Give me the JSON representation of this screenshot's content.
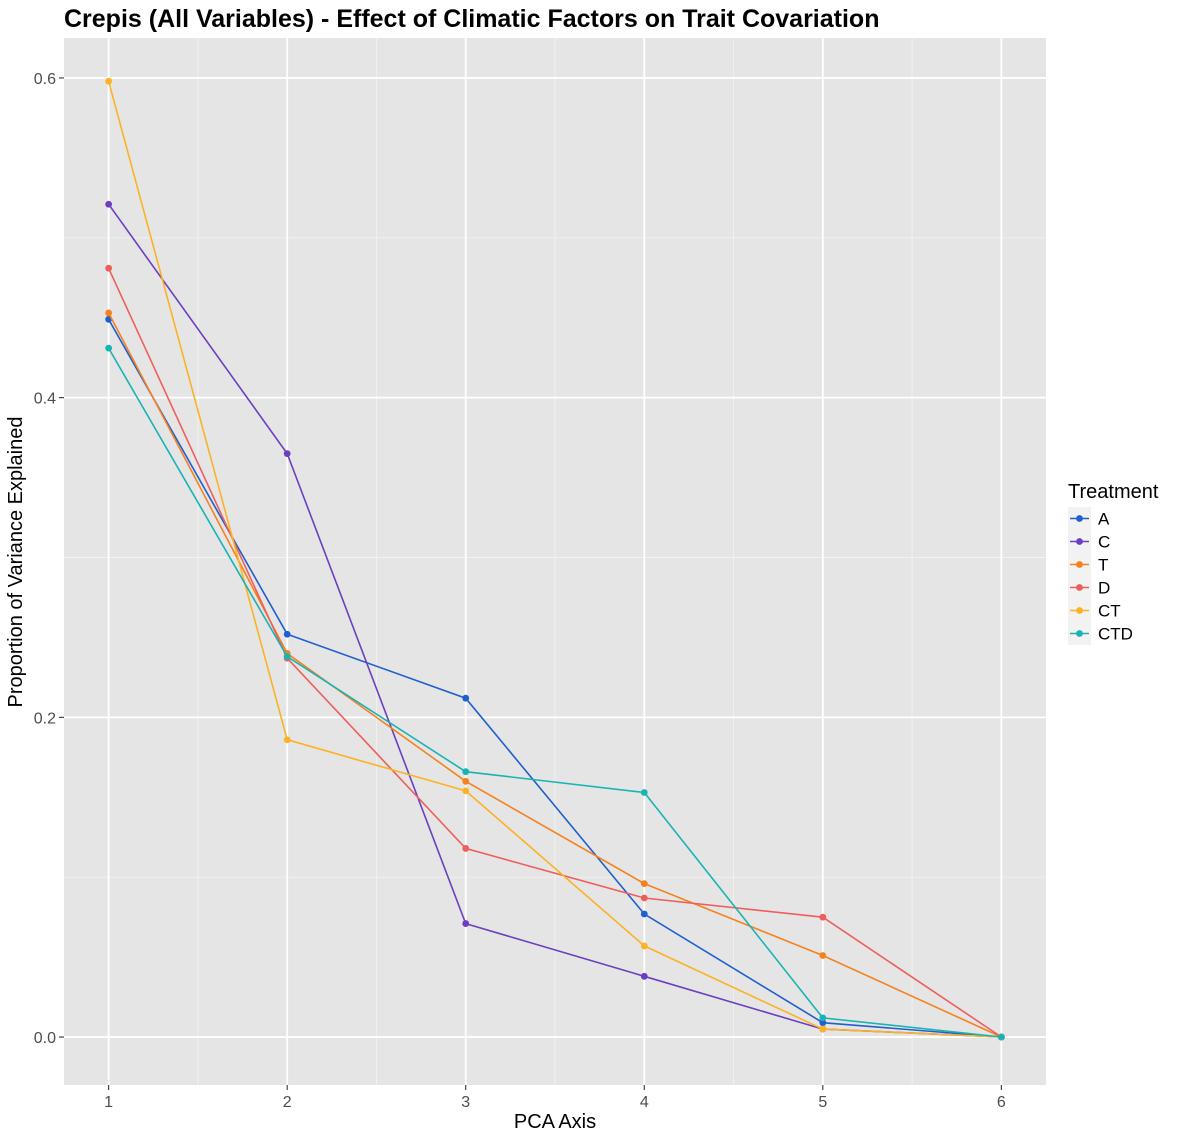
{
  "chart_data": {
    "type": "line",
    "title": "Crepis (All Variables) - Effect of Climatic Factors on Trait Covariation",
    "xlabel": "PCA Axis",
    "ylabel": "Proportion of Variance Explained",
    "x": [
      1,
      2,
      3,
      4,
      5,
      6
    ],
    "x_ticks": [
      "1",
      "2",
      "3",
      "4",
      "5",
      "6"
    ],
    "y_ticks": [
      "0.0",
      "0.2",
      "0.4",
      "0.6"
    ],
    "xlim": [
      0.75,
      6.25
    ],
    "ylim": [
      -0.03,
      0.625
    ],
    "grid": true,
    "legend_title": "Treatment",
    "legend_position": "right",
    "series": [
      {
        "name": "A",
        "color": "#1f5fce",
        "values": [
          0.449,
          0.252,
          0.212,
          0.077,
          0.009,
          0.0
        ]
      },
      {
        "name": "C",
        "color": "#6b3fbf",
        "values": [
          0.521,
          0.365,
          0.071,
          0.038,
          0.005,
          0.0
        ]
      },
      {
        "name": "T",
        "color": "#f5821f",
        "values": [
          0.453,
          0.24,
          0.16,
          0.096,
          0.051,
          0.0
        ]
      },
      {
        "name": "D",
        "color": "#ee5f5b",
        "values": [
          0.481,
          0.237,
          0.118,
          0.087,
          0.075,
          0.0
        ]
      },
      {
        "name": "CT",
        "color": "#fbb225",
        "values": [
          0.598,
          0.186,
          0.154,
          0.057,
          0.005,
          0.0
        ]
      },
      {
        "name": "CTD",
        "color": "#1ab3b3",
        "values": [
          0.431,
          0.238,
          0.166,
          0.153,
          0.012,
          0.0
        ]
      }
    ]
  }
}
